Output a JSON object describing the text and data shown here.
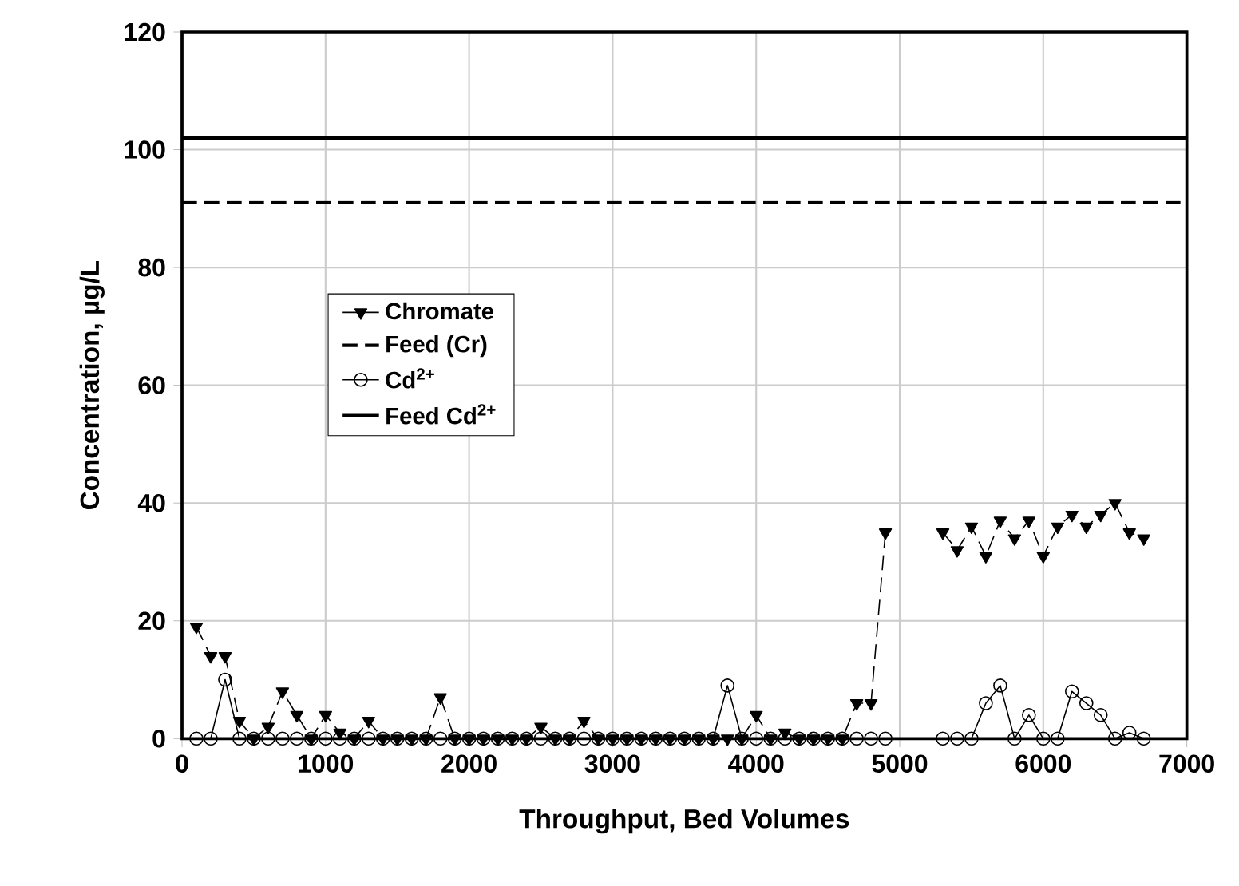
{
  "chart_data": {
    "type": "line",
    "xlabel": "Throughput, Bed Volumes",
    "ylabel": "Concentration, µg/L",
    "x": [
      100,
      200,
      300,
      400,
      500,
      600,
      700,
      800,
      900,
      1000,
      1100,
      1200,
      1300,
      1400,
      1500,
      1600,
      1700,
      1800,
      1900,
      2000,
      2100,
      2200,
      2300,
      2400,
      2500,
      2600,
      2700,
      2800,
      2900,
      3000,
      3100,
      3200,
      3300,
      3400,
      3500,
      3600,
      3700,
      3800,
      3900,
      4000,
      4100,
      4200,
      4300,
      4400,
      4500,
      4600,
      4700,
      4800,
      4900,
      5000,
      5100,
      5200,
      5300,
      5400,
      5500,
      5600,
      5700,
      5800,
      5900,
      6000,
      6100,
      6200,
      6300,
      6400,
      6500,
      6600,
      6700
    ],
    "series": [
      {
        "name": "Chromate",
        "color": "#000000",
        "marker": "triangle",
        "line_style": "dashed",
        "values": [
          19,
          14,
          14,
          3,
          0,
          2,
          8,
          4,
          0,
          4,
          1,
          0,
          3,
          0,
          0,
          0,
          0,
          7,
          0,
          0,
          0,
          0,
          0,
          0,
          2,
          0,
          0,
          3,
          0,
          0,
          0,
          0,
          0,
          0,
          0,
          0,
          0,
          0,
          0,
          4,
          0,
          1,
          0,
          0,
          0,
          0,
          6,
          6,
          35,
          null,
          null,
          null,
          35,
          32,
          36,
          31,
          37,
          34,
          37,
          31,
          36,
          38,
          36,
          38,
          40,
          35,
          34
        ]
      },
      {
        "name": "Cd$^{2+}$",
        "color": "#000000",
        "marker": "circle",
        "line_style": "solid",
        "values": [
          0,
          0,
          10,
          0,
          0,
          0,
          0,
          0,
          0,
          0,
          0,
          0,
          0,
          0,
          0,
          0,
          0,
          0,
          0,
          0,
          0,
          0,
          0,
          0,
          0,
          0,
          0,
          0,
          0,
          0,
          0,
          0,
          0,
          0,
          0,
          0,
          0,
          9,
          0,
          0,
          0,
          0,
          0,
          0,
          0,
          0,
          0,
          0,
          0,
          null,
          null,
          null,
          0,
          0,
          0,
          6,
          9,
          0,
          4,
          0,
          0,
          8,
          6,
          4,
          0,
          1,
          0
        ]
      }
    ],
    "ref_lines": [
      {
        "axis": "y",
        "value": 91,
        "label": "Feed (Cr)",
        "color": "#000000",
        "line_style": "dashed"
      },
      {
        "axis": "y",
        "value": 102,
        "label": "Feed Cd$^{2+}$",
        "color": "#000000",
        "line_style": "solid"
      }
    ],
    "xlim": [
      0,
      7000
    ],
    "xticks": [
      0,
      1000,
      2000,
      3000,
      4000,
      5000,
      6000,
      7000
    ],
    "ylim": [
      0,
      120
    ],
    "yticks": [
      0,
      20,
      40,
      60,
      80,
      100,
      120
    ],
    "grid": true,
    "legend": "left"
  }
}
